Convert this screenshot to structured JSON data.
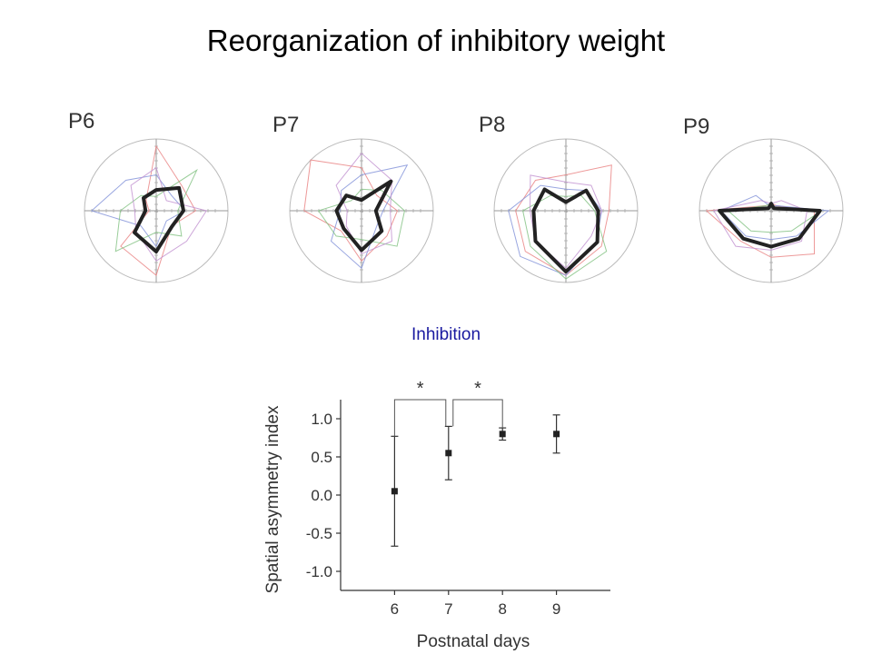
{
  "title": "Reorganization of inhibitory weight",
  "panels": [
    {
      "label": "P6"
    },
    {
      "label": "P7"
    },
    {
      "label": "P8"
    },
    {
      "label": "P9"
    }
  ],
  "chart_data": [
    {
      "type": "radar",
      "title": "P6",
      "angles_deg": [
        0,
        45,
        90,
        135,
        180,
        225,
        270,
        315
      ],
      "mean": [
        0.38,
        0.45,
        0.29,
        0.25,
        0.15,
        0.43,
        0.57,
        0.31
      ],
      "traces": [
        {
          "color": "#e88080",
          "values": [
            0.55,
            0.5,
            0.9,
            0.2,
            0.1,
            0.7,
            0.9,
            0.3
          ]
        },
        {
          "color": "#8090d8",
          "values": [
            0.4,
            0.3,
            0.5,
            0.6,
            0.9,
            0.3,
            0.5,
            0.2
          ]
        },
        {
          "color": "#80c080",
          "values": [
            0.3,
            0.8,
            0.2,
            0.3,
            0.5,
            0.8,
            0.3,
            0.5
          ]
        },
        {
          "color": "#c090d0",
          "values": [
            0.7,
            0.2,
            0.6,
            0.5,
            0.3,
            0.4,
            0.7,
            0.6
          ]
        }
      ]
    },
    {
      "type": "radar",
      "title": "P7",
      "angles_deg": [
        0,
        45,
        90,
        135,
        180,
        225,
        270,
        315
      ],
      "mean": [
        0.2,
        0.58,
        0.15,
        0.3,
        0.35,
        0.35,
        0.55,
        0.4
      ],
      "traces": [
        {
          "color": "#e88080",
          "values": [
            0.5,
            0.3,
            0.6,
            1.0,
            0.8,
            0.4,
            0.7,
            0.5
          ]
        },
        {
          "color": "#8090d8",
          "values": [
            0.3,
            0.9,
            0.5,
            0.4,
            0.3,
            0.6,
            0.8,
            0.3
          ]
        },
        {
          "color": "#80c080",
          "values": [
            0.6,
            0.4,
            0.3,
            0.2,
            0.6,
            0.5,
            0.4,
            0.7
          ]
        },
        {
          "color": "#c090d0",
          "values": [
            0.4,
            0.6,
            0.8,
            0.5,
            0.2,
            0.3,
            0.6,
            0.6
          ]
        }
      ]
    },
    {
      "type": "radar",
      "title": "P8",
      "angles_deg": [
        0,
        45,
        90,
        135,
        180,
        225,
        270,
        315
      ],
      "mean": [
        0.45,
        0.4,
        0.12,
        0.42,
        0.45,
        0.6,
        0.85,
        0.62
      ],
      "traces": [
        {
          "color": "#e88080",
          "values": [
            0.6,
            0.9,
            0.5,
            0.6,
            0.7,
            0.8,
            0.9,
            0.7
          ]
        },
        {
          "color": "#8090d8",
          "values": [
            0.5,
            0.4,
            0.3,
            0.5,
            0.8,
            0.9,
            0.9,
            0.6
          ]
        },
        {
          "color": "#80c080",
          "values": [
            0.4,
            0.3,
            0.2,
            0.3,
            0.6,
            0.7,
            0.95,
            0.8
          ]
        },
        {
          "color": "#c090d0",
          "values": [
            0.5,
            0.5,
            0.4,
            0.7,
            0.5,
            0.6,
            0.8,
            0.5
          ]
        }
      ]
    },
    {
      "type": "radar",
      "title": "P9",
      "angles_deg": [
        0,
        45,
        90,
        135,
        180,
        225,
        270,
        315
      ],
      "mean": [
        0.68,
        0.05,
        0.1,
        0.05,
        0.72,
        0.55,
        0.5,
        0.55
      ],
      "traces": [
        {
          "color": "#e88080",
          "values": [
            0.6,
            0.1,
            0.1,
            0.1,
            0.9,
            0.6,
            0.65,
            0.85
          ]
        },
        {
          "color": "#8090d8",
          "values": [
            0.8,
            0.1,
            0.05,
            0.3,
            0.7,
            0.5,
            0.4,
            0.5
          ]
        },
        {
          "color": "#80c080",
          "values": [
            0.7,
            0.05,
            0.1,
            0.1,
            0.6,
            0.4,
            0.3,
            0.4
          ]
        },
        {
          "color": "#c090d0",
          "values": [
            0.5,
            0.2,
            0.1,
            0.2,
            0.8,
            0.7,
            0.55,
            0.6
          ]
        }
      ]
    },
    {
      "type": "scatter",
      "title": "Inhibition",
      "title_color": "#1a1aa0",
      "xlabel": "Postnatal days",
      "ylabel": "Spatial asymmetry index",
      "x": [
        6,
        7,
        8,
        9
      ],
      "y": [
        0.05,
        0.55,
        0.8,
        0.8
      ],
      "err_low": [
        -0.67,
        0.2,
        0.72,
        0.55
      ],
      "err_high": [
        0.77,
        0.9,
        0.88,
        1.05
      ],
      "xlim": [
        5,
        10
      ],
      "ylim": [
        -1.25,
        1.25
      ],
      "xticks": [
        6,
        7,
        8,
        9
      ],
      "yticks": [
        1.0,
        0.5,
        0.0,
        -0.5,
        -1.0
      ],
      "ytick_labels": [
        "1.0",
        "0.5",
        "0.0",
        "-0.5",
        "-1.0"
      ],
      "significance": [
        {
          "from": 6,
          "to": 7,
          "label": "*"
        },
        {
          "from": 7,
          "to": 8,
          "label": "*"
        }
      ]
    }
  ]
}
